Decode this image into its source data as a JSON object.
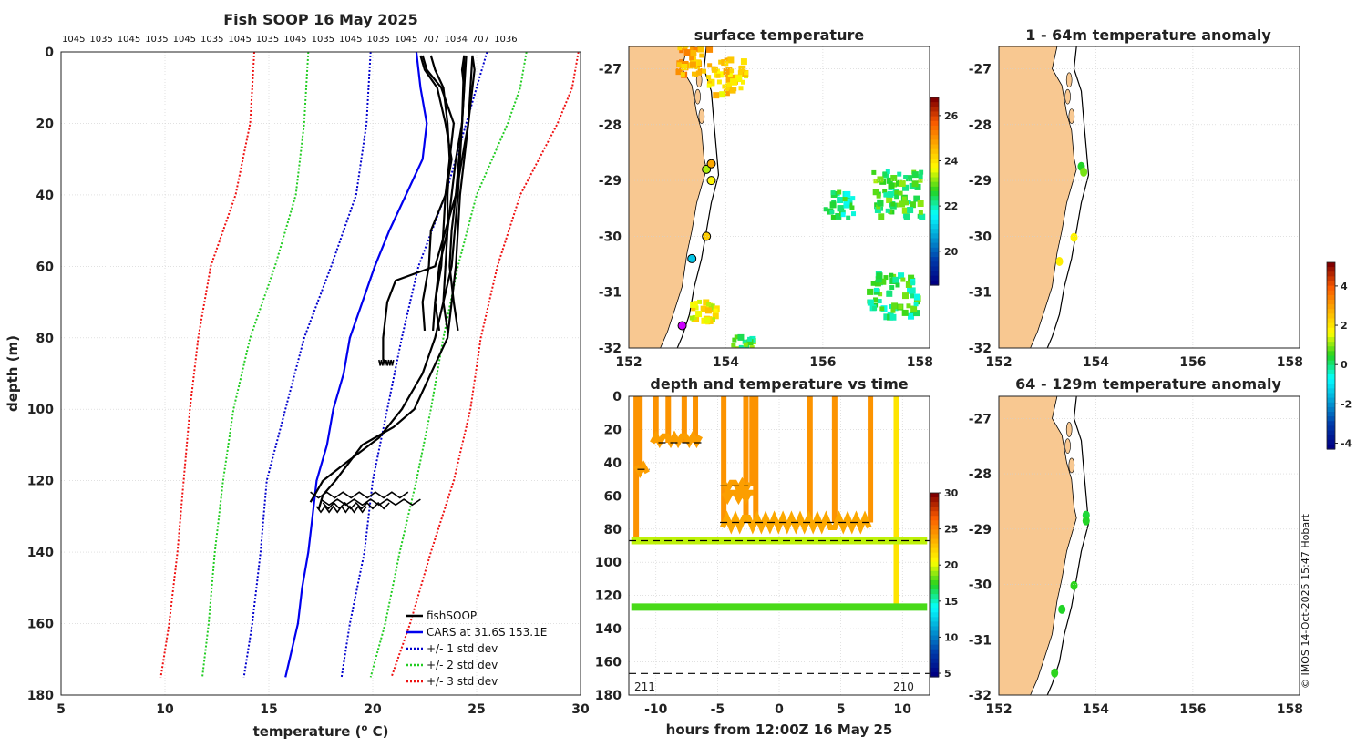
{
  "chart_data": [
    {
      "type": "line",
      "title": "Fish SOOP 16 May 2025",
      "xlabel": "temperature (",
      "xlabel_sup": "o",
      "xlabel_end": " C)",
      "ylabel": "depth (m)",
      "xlim": [
        5,
        30
      ],
      "ylim": [
        0,
        180
      ],
      "xticks": [
        "5",
        "10",
        "15",
        "20",
        "25",
        "30"
      ],
      "yticks": [
        "0",
        "20",
        "40",
        "60",
        "80",
        "100",
        "120",
        "140",
        "160",
        "180"
      ],
      "top_labels": [
        "1045",
        "1035",
        "1045",
        "1035",
        "1045",
        "1035",
        "1045",
        "1035",
        "1045",
        "1035",
        "1045",
        "1035",
        "1045",
        "707",
        "1034",
        "707",
        "1036"
      ],
      "legend": [
        "fishSOOP",
        "CARS at 31.6S 153.1E",
        "+/- 1 std dev",
        "+/- 2 std dev",
        "+/- 3 std dev"
      ],
      "colors": {
        "fishsoop": "#000000",
        "cars": "#0000ee",
        "std1": "#0000cc",
        "std2": "#22cc22",
        "std3": "#ee1111"
      },
      "series": [
        {
          "name": "CARS at 31.6S 153.1E",
          "depth": [
            0,
            10,
            20,
            30,
            40,
            50,
            60,
            70,
            80,
            90,
            100,
            110,
            120,
            130,
            140,
            150,
            160,
            170,
            175
          ],
          "temperature": [
            22.1,
            22.3,
            22.6,
            22.4,
            21.6,
            20.8,
            20.1,
            19.5,
            18.9,
            18.6,
            18.1,
            17.8,
            17.3,
            17.1,
            16.9,
            16.6,
            16.4,
            16.0,
            15.8
          ]
        },
        {
          "name": "+1 std",
          "depth": [
            0,
            10,
            20,
            40,
            60,
            80,
            100,
            120,
            140,
            160,
            175
          ],
          "temperature": [
            25.5,
            25.0,
            24.5,
            23.5,
            22.2,
            21.4,
            20.7,
            20.0,
            19.6,
            18.9,
            18.5
          ]
        },
        {
          "name": "-1 std",
          "depth": [
            0,
            10,
            20,
            40,
            60,
            80,
            100,
            120,
            140,
            160,
            175
          ],
          "temperature": [
            19.9,
            19.8,
            19.7,
            19.2,
            18.0,
            16.7,
            15.8,
            14.9,
            14.6,
            14.2,
            13.8
          ]
        },
        {
          "name": "+2 std",
          "depth": [
            0,
            10,
            20,
            40,
            60,
            80,
            100,
            120,
            140,
            160,
            175
          ],
          "temperature": [
            27.4,
            27.1,
            26.5,
            25.0,
            24.1,
            23.4,
            22.8,
            22.1,
            21.3,
            20.6,
            19.9
          ]
        },
        {
          "name": "-2 std",
          "depth": [
            0,
            10,
            20,
            40,
            60,
            80,
            100,
            120,
            140,
            160,
            175
          ],
          "temperature": [
            16.9,
            16.8,
            16.7,
            16.3,
            15.3,
            14.1,
            13.3,
            12.8,
            12.4,
            12.1,
            11.8
          ]
        },
        {
          "name": "+3 std",
          "depth": [
            0,
            10,
            20,
            40,
            60,
            80,
            100,
            120,
            140,
            160,
            175
          ],
          "temperature": [
            29.9,
            29.6,
            28.9,
            27.1,
            26.0,
            25.2,
            24.7,
            23.9,
            22.8,
            21.8,
            20.9
          ]
        },
        {
          "name": "-3 std",
          "depth": [
            0,
            10,
            20,
            40,
            60,
            80,
            100,
            120,
            140,
            160,
            175
          ],
          "temperature": [
            14.3,
            14.2,
            14.1,
            13.4,
            12.2,
            11.6,
            11.2,
            10.9,
            10.6,
            10.2,
            9.8
          ]
        },
        {
          "name": "fishSOOP profiles",
          "depth": [
            1,
            5,
            10,
            20,
            30,
            40,
            50,
            60,
            70,
            78
          ],
          "profiles": [
            [
              22.3,
              22.5,
              23.1,
              23.5,
              23.8,
              23.5,
              23.4,
              23.3,
              23.0,
              23.2
            ],
            [
              24.4,
              24.3,
              24.4,
              24.3,
              24.0,
              23.8,
              23.6,
              23.5,
              23.4,
              23.6
            ],
            [
              24.8,
              24.9,
              24.8,
              24.6,
              24.3,
              24.0,
              23.8,
              23.7,
              23.9,
              24.1
            ],
            [
              22.4,
              22.6,
              23.3,
              23.9,
              23.7,
              23.5,
              22.8,
              22.7,
              22.4,
              22.5
            ],
            [
              22.8,
              23.0,
              23.4,
              23.6,
              23.7,
              23.6,
              23.6,
              23.2,
              23.0,
              22.9
            ]
          ]
        },
        {
          "name": "fishSOOP deep cast A",
          "depth": [
            1,
            20,
            40,
            60,
            64,
            70,
            80,
            86,
            87
          ],
          "temperature": [
            24.4,
            24.3,
            24.0,
            23.0,
            21.1,
            20.7,
            20.5,
            20.5,
            20.6
          ]
        },
        {
          "name": "fishSOOP deep cast B",
          "depth": [
            1,
            20,
            40,
            60,
            80,
            90,
            100,
            105,
            110,
            120,
            124,
            126,
            128
          ],
          "temperature": [
            24.8,
            24.6,
            24.2,
            24.0,
            23.6,
            22.8,
            22.0,
            21.0,
            19.5,
            18.2,
            17.6,
            17.5,
            17.4
          ]
        },
        {
          "name": "fishSOOP deep cast C",
          "depth": [
            1,
            20,
            40,
            60,
            80,
            90,
            100,
            108,
            115,
            120,
            124,
            126
          ],
          "temperature": [
            24.5,
            24.3,
            24.1,
            23.8,
            23.0,
            22.4,
            21.4,
            20.3,
            18.7,
            17.6,
            17.2,
            17.0
          ]
        }
      ]
    },
    {
      "type": "heatmap",
      "title": "surface temperature",
      "xlim": [
        152,
        158.2
      ],
      "ylim": [
        -32,
        -26.6
      ],
      "xticks": [
        "152",
        "154",
        "156",
        "158"
      ],
      "yticks": [
        "-27",
        "-28",
        "-29",
        "-30",
        "-31",
        "-32"
      ],
      "colorbar": {
        "range": [
          18.5,
          26.8
        ],
        "ticks": [
          "26",
          "24",
          "22",
          "20"
        ]
      },
      "sst_patches": [
        {
          "lon": 153.3,
          "lat": -26.8,
          "value": 24.8,
          "count": 40,
          "spread": 0.35
        },
        {
          "lon": 154.0,
          "lat": -27.1,
          "value": 24.2,
          "count": 50,
          "spread": 0.4
        },
        {
          "lon": 157.5,
          "lat": -29.2,
          "value": 22.6,
          "count": 70,
          "spread": 0.5
        },
        {
          "lon": 156.3,
          "lat": -29.4,
          "value": 22.3,
          "count": 30,
          "spread": 0.3
        },
        {
          "lon": 157.4,
          "lat": -31.0,
          "value": 22.4,
          "count": 60,
          "spread": 0.5
        },
        {
          "lon": 153.5,
          "lat": -31.3,
          "value": 23.9,
          "count": 30,
          "spread": 0.25
        },
        {
          "lon": 154.3,
          "lat": -31.9,
          "value": 22.6,
          "count": 25,
          "spread": 0.2
        }
      ],
      "stations": [
        {
          "lon": 153.6,
          "lat": -28.8,
          "value": 23.3
        },
        {
          "lon": 153.7,
          "lat": -28.7,
          "value": 24.8
        },
        {
          "lon": 153.7,
          "lat": -29.0,
          "value": 23.8
        },
        {
          "lon": 153.6,
          "lat": -30.0,
          "value": 24.3
        },
        {
          "lon": 153.3,
          "lat": -30.4,
          "value": 21.0
        },
        {
          "lon": 153.1,
          "lat": -31.6,
          "value": 0
        }
      ]
    },
    {
      "type": "scatter",
      "title": "depth and temperature vs time",
      "xlabel": "hours from 12:00Z 16 May 25",
      "xlim": [
        -12.2,
        12.2
      ],
      "ylim": [
        0,
        180
      ],
      "xticks": [
        "-10",
        "-5",
        "0",
        "5",
        "10"
      ],
      "yticks": [
        "0",
        "20",
        "40",
        "60",
        "80",
        "100",
        "120",
        "140",
        "160",
        "180"
      ],
      "annotations": [
        "211",
        "210"
      ],
      "colorbar": {
        "range": [
          4.5,
          30
        ],
        "ticks": [
          "30",
          "25",
          "20",
          "15",
          "10",
          "5"
        ]
      },
      "series": [
        {
          "name": "bottom-line",
          "hours": [
            -12,
            12
          ],
          "depth": [
            87,
            87
          ],
          "temperature": 19.5
        },
        {
          "name": "deep-line",
          "hours": [
            -12,
            12
          ],
          "depth": [
            127,
            127
          ],
          "temperature": 17.8
        },
        {
          "name": "mid-line",
          "hours": [
            -5,
            8
          ],
          "depth": [
            76,
            76
          ],
          "temperature": 23.8
        }
      ],
      "dashed_depths": [
        87,
        167
      ],
      "short_dashes": [
        {
          "h0": -11.5,
          "h1": -10.5,
          "depth": 44
        },
        {
          "h0": -9.8,
          "h1": -6,
          "depth": 28
        },
        {
          "h0": -4.8,
          "h1": -2.5,
          "depth": 54
        },
        {
          "h0": -4.8,
          "h1": 7.5,
          "depth": 76
        }
      ]
    },
    {
      "type": "scatter",
      "title": "1 - 64m temperature anomaly",
      "xlim": [
        152,
        158.2
      ],
      "ylim": [
        -32,
        -26.6
      ],
      "xticks": [
        "152",
        "154",
        "156",
        "158"
      ],
      "yticks": [
        "-27",
        "-28",
        "-29",
        "-30",
        "-31",
        "-32"
      ],
      "colorbar": {
        "range": [
          -4.3,
          5.2
        ],
        "ticks": [
          "4",
          "2",
          "0",
          "-2",
          "-4"
        ]
      },
      "points": [
        {
          "lon": 153.7,
          "lat": -28.75,
          "value": 0.4
        },
        {
          "lon": 153.75,
          "lat": -28.85,
          "value": 0.9
        },
        {
          "lon": 153.55,
          "lat": -30.02,
          "value": 1.8
        },
        {
          "lon": 153.25,
          "lat": -30.45,
          "value": 1.9
        }
      ]
    },
    {
      "type": "scatter",
      "title": "64 - 129m temperature anomaly",
      "xlim": [
        152,
        158.2
      ],
      "ylim": [
        -32,
        -26.6
      ],
      "xticks": [
        "152",
        "154",
        "156",
        "158"
      ],
      "yticks": [
        "-27",
        "-28",
        "-29",
        "-30",
        "-31",
        "-32"
      ],
      "points": [
        {
          "lon": 153.8,
          "lat": -28.75,
          "value": 0.3
        },
        {
          "lon": 153.8,
          "lat": -28.85,
          "value": 0.4
        },
        {
          "lon": 153.55,
          "lat": -30.02,
          "value": 0.5
        },
        {
          "lon": 153.3,
          "lat": -30.45,
          "value": 0.4
        },
        {
          "lon": 153.15,
          "lat": -31.6,
          "value": 0.5
        }
      ]
    }
  ],
  "credit": "© IMOS 14-Oct-2025 15:47 Hobart"
}
